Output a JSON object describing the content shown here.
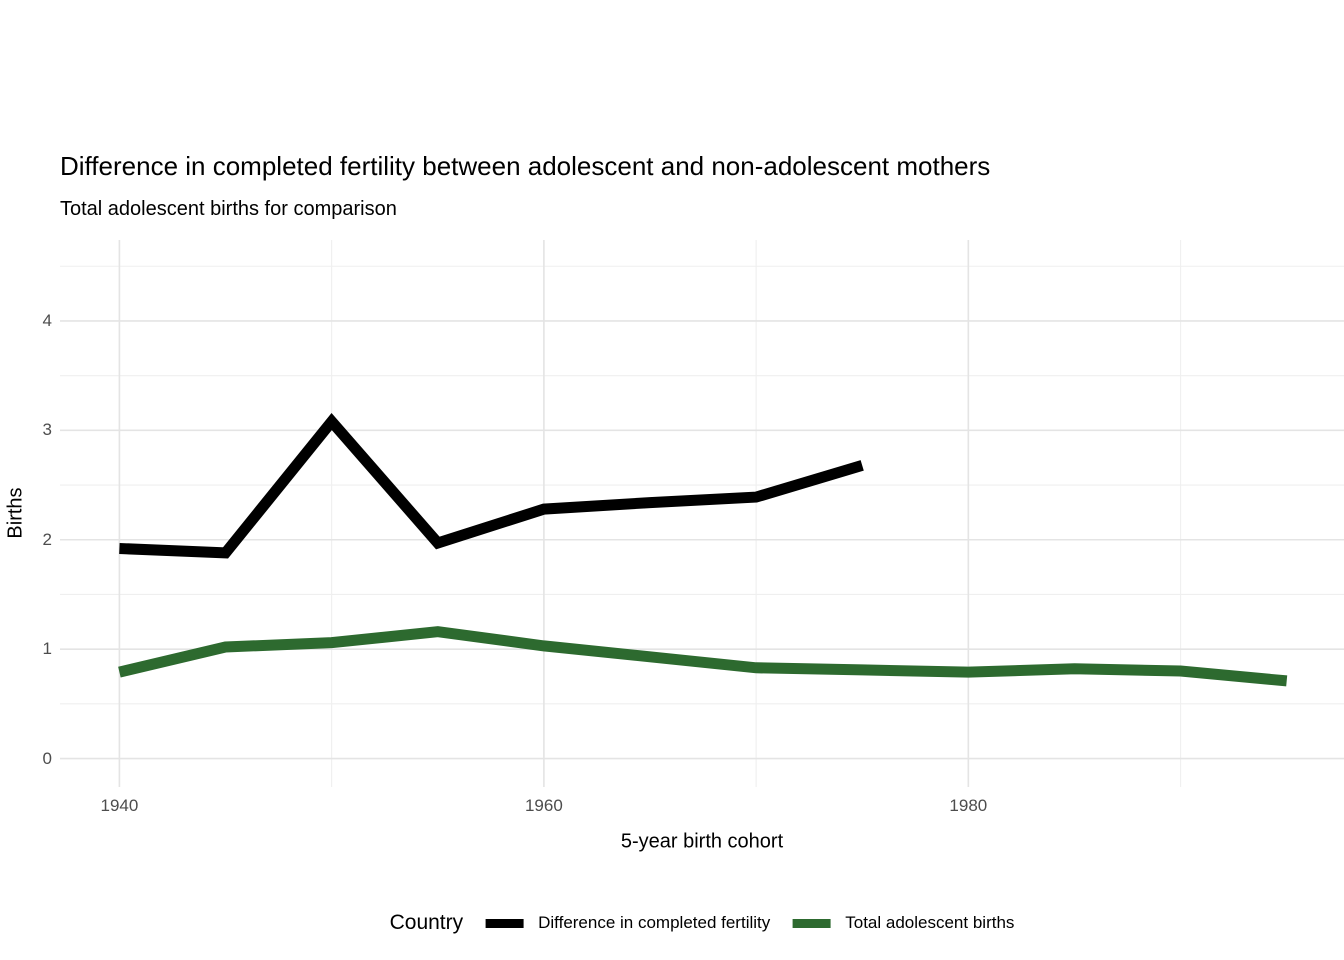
{
  "chart_data": {
    "type": "line",
    "title": "Difference in completed fertility between adolescent and non-adolescent mothers",
    "subtitle": "Total adolescent births for comparison",
    "xlabel": "5-year birth cohort",
    "ylabel": "Births",
    "legend_title": "Country",
    "legend_position": "bottom",
    "grid": true,
    "x_major_ticks": [
      1940,
      1960,
      1980
    ],
    "x_minor_gridlines": [
      1950,
      1970,
      1990
    ],
    "y_major_ticks": [
      0,
      1,
      2,
      3,
      4
    ],
    "y_minor_gridlines": [
      0.5,
      1.5,
      2.5,
      3.5,
      4.5
    ],
    "xlim": [
      1937.2,
      1997.7
    ],
    "ylim": [
      -0.26,
      4.74
    ],
    "series": [
      {
        "name": "Difference in completed fertility",
        "color": "#000000",
        "x": [
          1940,
          1945,
          1950,
          1955,
          1960,
          1965,
          1970,
          1975
        ],
        "values": [
          1.92,
          1.88,
          3.08,
          1.97,
          2.28,
          2.34,
          2.39,
          2.68
        ]
      },
      {
        "name": "Total adolescent births",
        "color": "#2d6a2f",
        "x": [
          1940,
          1945,
          1950,
          1955,
          1960,
          1965,
          1970,
          1975,
          1980,
          1985,
          1990,
          1995
        ],
        "values": [
          0.79,
          1.02,
          1.06,
          1.16,
          1.03,
          0.93,
          0.83,
          0.81,
          0.79,
          0.82,
          0.8,
          0.71
        ]
      }
    ],
    "grid_major_color": "#e4e4e4",
    "grid_minor_color": "#efefef"
  }
}
